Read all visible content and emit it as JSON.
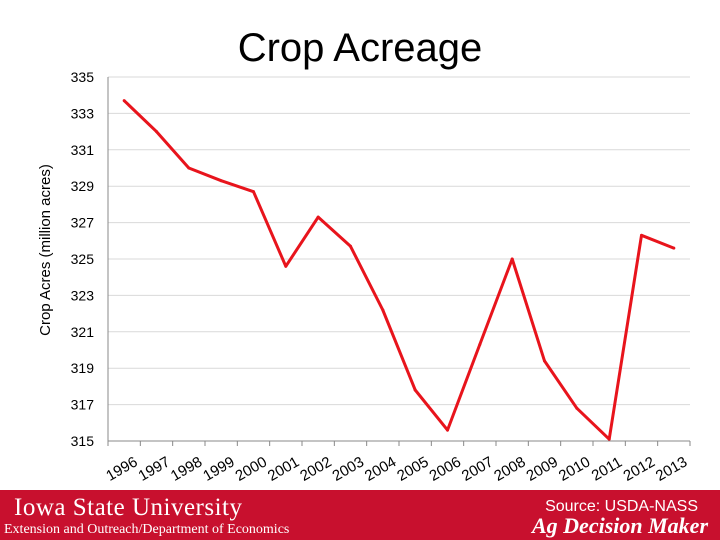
{
  "title": "Crop Acreage",
  "chart_data": {
    "type": "line",
    "title": "Crop Acreage",
    "xlabel": "",
    "ylabel": "Crop Acres (million acres)",
    "categories": [
      "1996",
      "1997",
      "1998",
      "1999",
      "2000",
      "2001",
      "2002",
      "2003",
      "2004",
      "2005",
      "2006",
      "2007",
      "2008",
      "2009",
      "2010",
      "2011",
      "2012",
      "2013"
    ],
    "series": [
      {
        "values": [
          333.7,
          332.0,
          330.0,
          329.3,
          328.7,
          324.6,
          327.3,
          325.7,
          322.2,
          317.8,
          315.6,
          320.3,
          325.0,
          319.4,
          316.8,
          315.1,
          326.3,
          325.6
        ]
      }
    ],
    "ylim": [
      315,
      335
    ],
    "yticks": [
      "315",
      "317",
      "319",
      "321",
      "323",
      "325",
      "327",
      "329",
      "331",
      "333",
      "335"
    ],
    "grid": true,
    "legend": "none",
    "line_color": "#e8141c"
  },
  "footer": {
    "university": "Iowa State University",
    "department": "Extension and Outreach/Department of Economics",
    "source": "Source: USDA-NASS",
    "brand": "Ag Decision Maker",
    "bar_color": "#c8102e"
  }
}
